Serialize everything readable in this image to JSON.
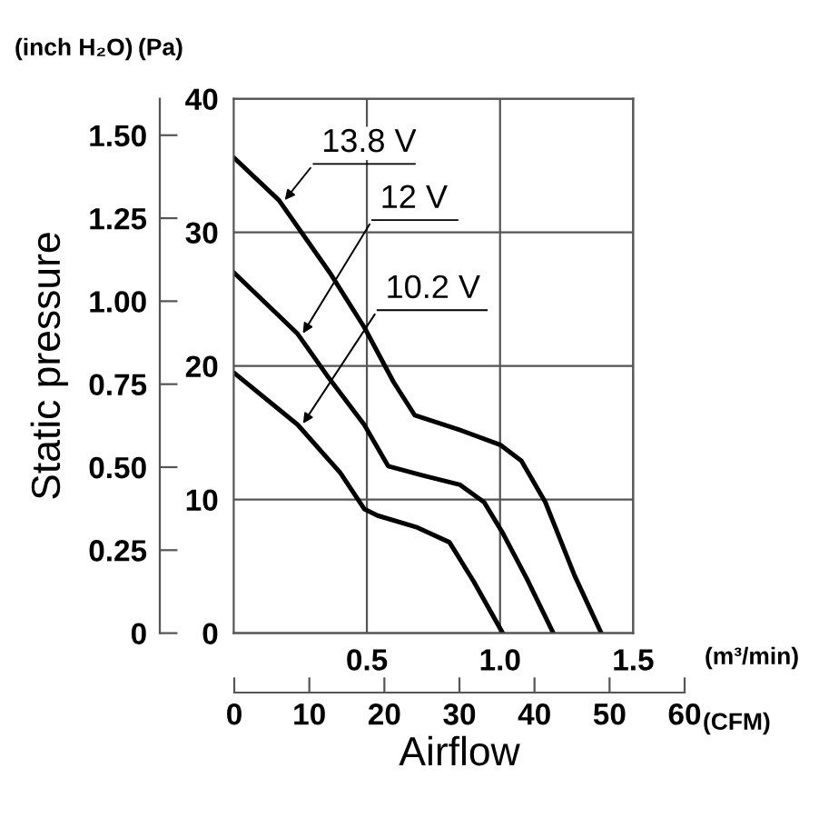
{
  "chart_data": {
    "type": "line",
    "xlabel": "Airflow",
    "ylabel": "Static pressure",
    "y2label": "(Pa)",
    "x2label": "(CFM)",
    "annotations": [
      "(inch H₂O)",
      "(m³/min)"
    ],
    "xlim": [
      0,
      1.5
    ],
    "xticks": [
      0.5,
      {
        "value": 1.0,
        "label": "1.0"
      },
      1.5
    ],
    "ylim": [
      0,
      1.61
    ],
    "yticks": [
      0,
      {
        "value": 0.25,
        "label": "0.25"
      },
      {
        "value": 0.5,
        "label": "0.50"
      },
      {
        "value": 0.75,
        "label": "0.75"
      },
      {
        "value": 1.0,
        "label": "1.00"
      },
      {
        "value": 1.25,
        "label": "1.25"
      },
      {
        "value": 1.5,
        "label": "1.50"
      }
    ],
    "y2lim": [
      0,
      40
    ],
    "y2ticks": [
      0,
      10,
      20,
      30,
      40
    ],
    "x2lim": [
      0,
      60
    ],
    "x2ticks": [
      0,
      10,
      20,
      30,
      40,
      50,
      60
    ],
    "grid": true,
    "marker": "none",
    "line_style": "solid",
    "series": [
      {
        "name": "13.8 V",
        "color": "#000000",
        "axis": "y2",
        "x": [
          0,
          0.17,
          0.36,
          0.49,
          0.6,
          0.68,
          0.85,
          1.0,
          1.08,
          1.17,
          1.28,
          1.38
        ],
        "values": [
          35.6,
          32.4,
          27.0,
          22.9,
          18.8,
          16.3,
          15.2,
          14.1,
          12.9,
          9.8,
          4.3,
          0
        ]
      },
      {
        "name": "12 V",
        "color": "#000000",
        "axis": "y2",
        "x": [
          0,
          0.24,
          0.35,
          0.49,
          0.58,
          0.71,
          0.85,
          0.94,
          1.01,
          1.1,
          1.2
        ],
        "values": [
          27.0,
          22.4,
          19.3,
          15.6,
          12.5,
          11.8,
          11.1,
          9.8,
          7.5,
          4.1,
          0
        ]
      },
      {
        "name": "10.2 V",
        "color": "#000000",
        "axis": "y2",
        "x": [
          0,
          0.24,
          0.4,
          0.49,
          0.54,
          0.69,
          0.81,
          0.9,
          1.01
        ],
        "values": [
          19.5,
          15.6,
          12.0,
          9.3,
          8.8,
          7.9,
          6.8,
          3.9,
          0
        ]
      }
    ]
  }
}
